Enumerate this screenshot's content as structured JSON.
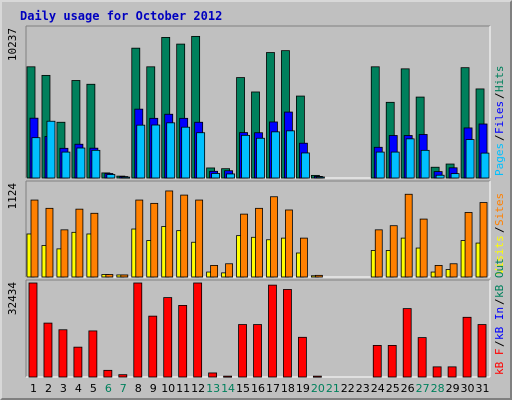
{
  "title": "Daily usage for October 2012",
  "colors": {
    "background": "#c0c0c0",
    "hits": "#00805c",
    "files": "#0000ff",
    "pages": "#00c0ff",
    "visits": "#ffff00",
    "sites": "#ff8000",
    "kbytes": "#ff0000",
    "weekday_label": "#000000",
    "weekend_label": "#00805c",
    "legend_sep": "#000000"
  },
  "chart_data": [
    {
      "type": "bar",
      "name": "hits-files-pages",
      "categories": [
        "1",
        "2",
        "3",
        "4",
        "5",
        "6",
        "7",
        "8",
        "9",
        "10",
        "11",
        "12",
        "13",
        "14",
        "15",
        "16",
        "17",
        "18",
        "19",
        "20",
        "21",
        "22",
        "23",
        "24",
        "25",
        "26",
        "27",
        "28",
        "29",
        "30",
        "31"
      ],
      "weekend": [
        "6",
        "7",
        "13",
        "14",
        "20",
        "21",
        "27",
        "28"
      ],
      "ymax_label": "10237",
      "ylim": [
        0,
        10237
      ],
      "legend": [
        {
          "text": "Pages",
          "color": "#00c0ff"
        },
        {
          "text": "Files",
          "color": "#0000ff"
        },
        {
          "text": "Hits",
          "color": "#00805c"
        }
      ],
      "series": [
        {
          "name": "Hits",
          "color": "#00805c",
          "values": [
            7640,
            7050,
            3830,
            6700,
            6440,
            350,
            130,
            8920,
            7640,
            9660,
            9200,
            9730,
            690,
            640,
            6900,
            5910,
            8620,
            8750,
            5630,
            180,
            0,
            0,
            0,
            7640,
            5200,
            7500,
            5560,
            740,
            960,
            7580,
            6120
          ]
        },
        {
          "name": "Files",
          "color": "#0000ff",
          "values": [
            4110,
            2850,
            2040,
            2320,
            2050,
            310,
            100,
            4730,
            4100,
            4380,
            4100,
            3830,
            460,
            500,
            3120,
            3110,
            3850,
            4530,
            2390,
            110,
            0,
            0,
            0,
            2110,
            2920,
            2920,
            2990,
            440,
            700,
            3440,
            3710
          ]
        },
        {
          "name": "Pages",
          "color": "#00c0ff",
          "values": [
            2770,
            3900,
            1780,
            2060,
            1900,
            240,
            60,
            3630,
            3640,
            3790,
            3490,
            3110,
            310,
            280,
            2930,
            2730,
            3170,
            3240,
            1720,
            70,
            0,
            0,
            0,
            1780,
            1780,
            2690,
            1900,
            190,
            300,
            2640,
            1710
          ]
        }
      ]
    },
    {
      "type": "bar",
      "name": "visits-sites",
      "categories": [
        "1",
        "2",
        "3",
        "4",
        "5",
        "6",
        "7",
        "8",
        "9",
        "10",
        "11",
        "12",
        "13",
        "14",
        "15",
        "16",
        "17",
        "18",
        "19",
        "20",
        "21",
        "22",
        "23",
        "24",
        "25",
        "26",
        "27",
        "28",
        "29",
        "30",
        "31"
      ],
      "ymax_label": "1124",
      "ylim": [
        0,
        1124
      ],
      "legend": [
        {
          "text": "Visits",
          "color": "#ffff00"
        },
        {
          "text": "Sites",
          "color": "#ff8000"
        }
      ],
      "series": [
        {
          "name": "Visits",
          "color": "#ffff00",
          "values": [
            520,
            380,
            340,
            540,
            520,
            30,
            25,
            580,
            440,
            610,
            560,
            420,
            60,
            50,
            500,
            480,
            450,
            470,
            290,
            15,
            0,
            0,
            0,
            320,
            320,
            470,
            350,
            60,
            90,
            440,
            410
          ]
        },
        {
          "name": "Sites",
          "color": "#ff8000",
          "values": [
            930,
            830,
            570,
            820,
            770,
            30,
            25,
            930,
            890,
            1040,
            990,
            930,
            140,
            160,
            760,
            830,
            970,
            810,
            470,
            20,
            0,
            0,
            0,
            570,
            620,
            1000,
            700,
            140,
            160,
            780,
            900
          ]
        }
      ]
    },
    {
      "type": "bar",
      "name": "kbytes",
      "categories": [
        "1",
        "2",
        "3",
        "4",
        "5",
        "6",
        "7",
        "8",
        "9",
        "10",
        "11",
        "12",
        "13",
        "14",
        "15",
        "16",
        "17",
        "18",
        "19",
        "20",
        "21",
        "22",
        "23",
        "24",
        "25",
        "26",
        "27",
        "28",
        "29",
        "30",
        "31"
      ],
      "ymax_label": "32434",
      "ylim": [
        0,
        32434
      ],
      "legend": [
        {
          "text": "kB F",
          "color": "#ff0000"
        },
        {
          "text": "kB In",
          "color": "#0000ff"
        },
        {
          "text": "kB Out",
          "color": "#00805c"
        }
      ],
      "series": [
        {
          "name": "kB F",
          "color": "#ff0000",
          "values": [
            32434,
            18600,
            16300,
            10300,
            15900,
            2300,
            800,
            32434,
            21000,
            27400,
            24700,
            32434,
            1400,
            300,
            18100,
            18100,
            31700,
            30200,
            13700,
            300,
            0,
            0,
            0,
            10900,
            10900,
            23600,
            13600,
            3500,
            3500,
            20600,
            18100
          ]
        }
      ]
    }
  ]
}
